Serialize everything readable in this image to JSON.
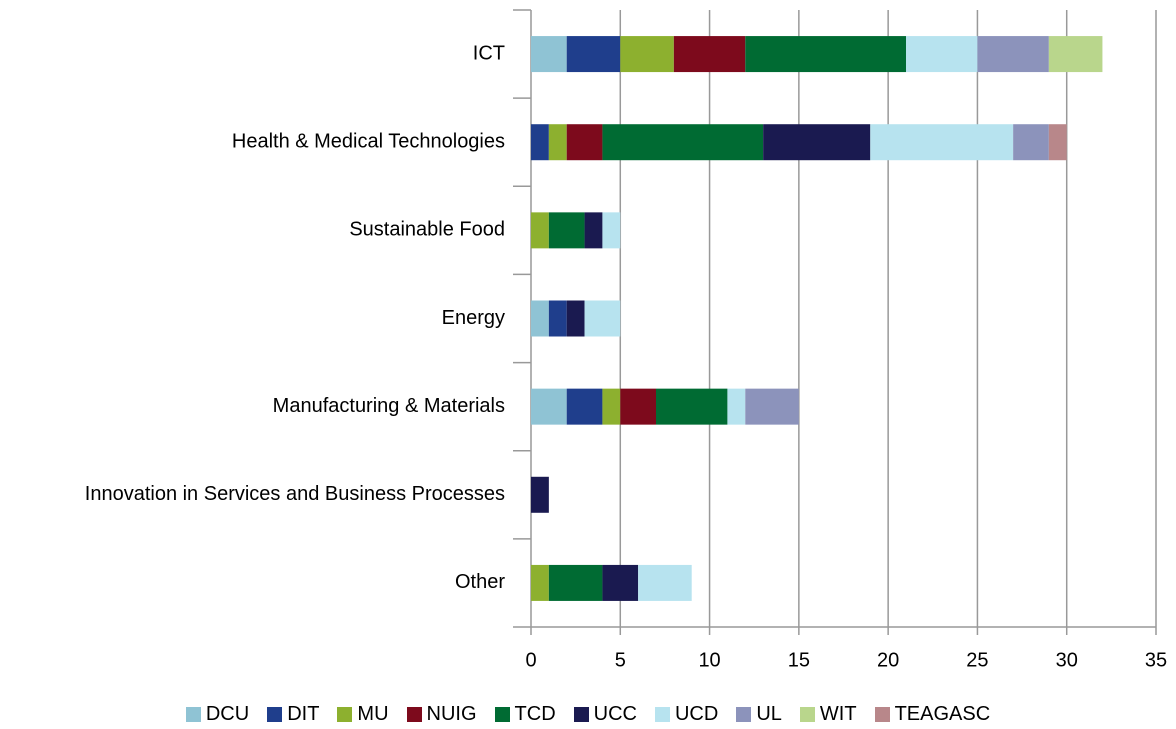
{
  "chart_data": {
    "type": "stacked_barh",
    "categories": [
      "ICT",
      "Health & Medical Technologies",
      "Sustainable Food",
      "Energy",
      "Manufacturing & Materials",
      "Innovation in Services and Business Processes",
      "Other"
    ],
    "series": [
      {
        "name": "DCU",
        "color": "#8fc3d4",
        "values": [
          2,
          0,
          0,
          1,
          2,
          0,
          0
        ]
      },
      {
        "name": "DIT",
        "color": "#1f3e8c",
        "values": [
          3,
          1,
          0,
          1,
          2,
          0,
          0
        ]
      },
      {
        "name": "MU",
        "color": "#8db02f",
        "values": [
          3,
          1,
          1,
          0,
          1,
          0,
          1
        ]
      },
      {
        "name": "NUIG",
        "color": "#7d0a1c",
        "values": [
          4,
          2,
          0,
          0,
          2,
          0,
          0
        ]
      },
      {
        "name": "TCD",
        "color": "#006b33",
        "values": [
          9,
          9,
          2,
          0,
          4,
          0,
          3
        ]
      },
      {
        "name": "UCC",
        "color": "#1a1a50",
        "values": [
          0,
          6,
          1,
          1,
          0,
          1,
          2
        ]
      },
      {
        "name": "UCD",
        "color": "#b7e3ef",
        "values": [
          4,
          8,
          1,
          2,
          1,
          0,
          3
        ]
      },
      {
        "name": "UL",
        "color": "#8c93bb",
        "values": [
          4,
          2,
          0,
          0,
          3,
          0,
          0
        ]
      },
      {
        "name": "WIT",
        "color": "#b9d68c",
        "values": [
          3,
          0,
          0,
          0,
          0,
          0,
          0
        ]
      },
      {
        "name": "TEAGASC",
        "color": "#b8878a",
        "values": [
          0,
          1,
          0,
          0,
          0,
          0,
          0
        ]
      }
    ],
    "xlim": [
      0,
      35
    ],
    "xticks": [
      0,
      5,
      10,
      15,
      20,
      25,
      30,
      35
    ],
    "grid": true,
    "legend": "bottom"
  }
}
